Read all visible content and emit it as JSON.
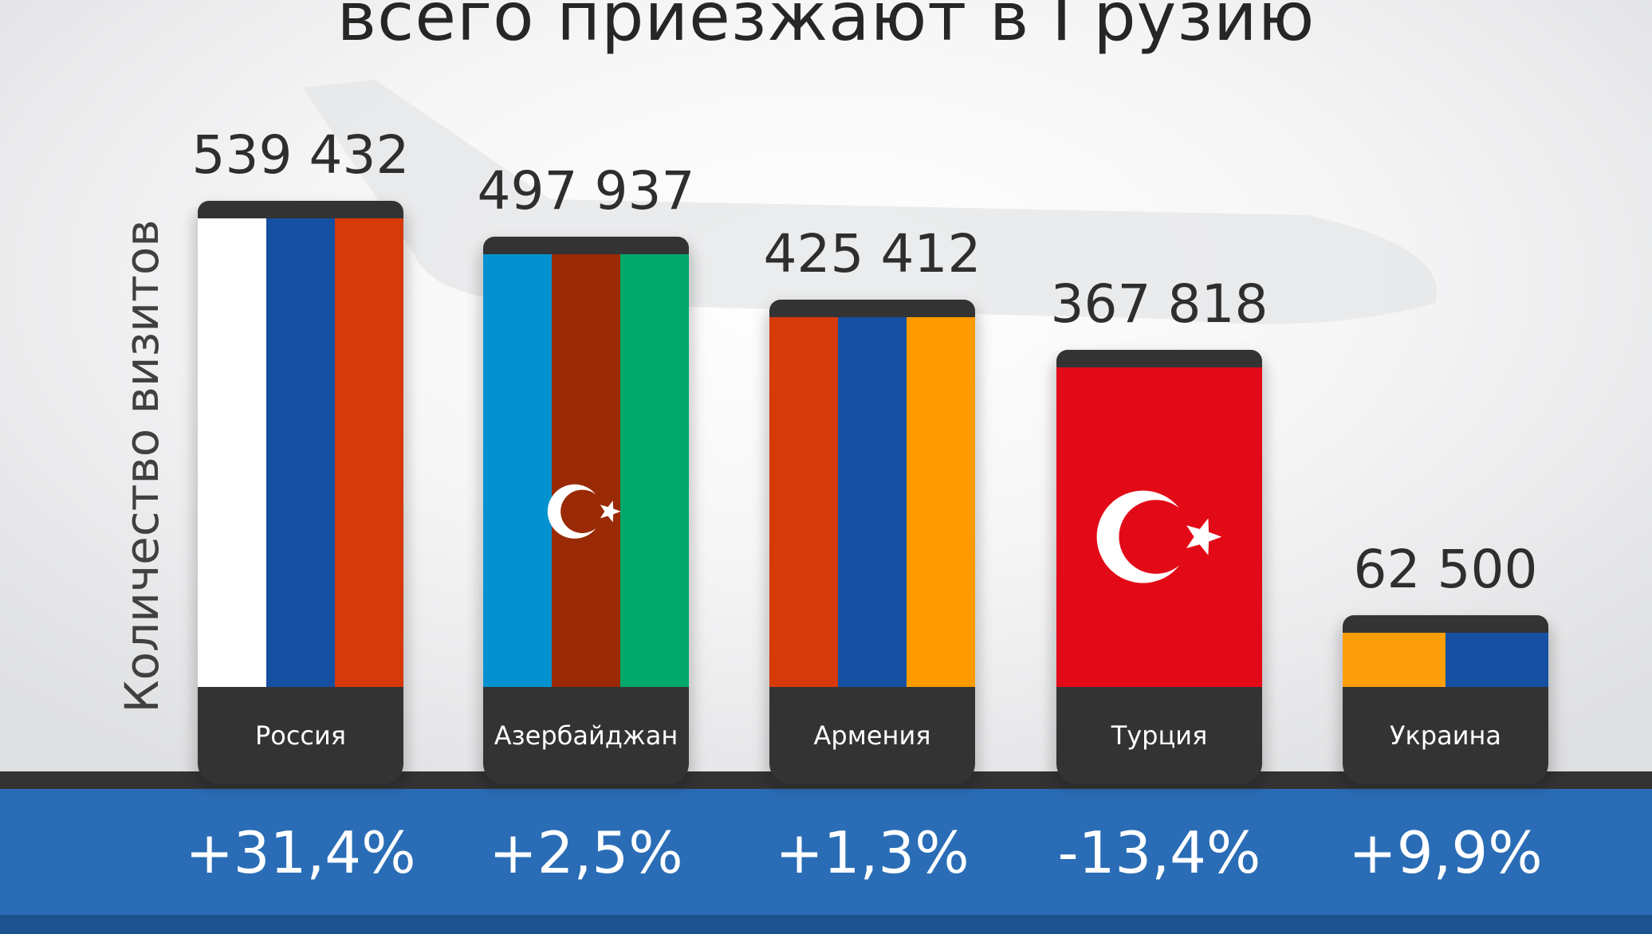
{
  "title": "всего приезжают в Грузию",
  "chart_data": {
    "type": "bar",
    "ylabel": "Количество визитов",
    "categories": [
      "Россия",
      "Азербайджан",
      "Армения",
      "Турция",
      "Украина"
    ],
    "values": [
      539432,
      497937,
      425412,
      367818,
      62500
    ],
    "value_labels": [
      "539 432",
      "497 937",
      "425 412",
      "367 818",
      "62 500"
    ],
    "changes": [
      "+31,4%",
      "+2,5%",
      "+1,3%",
      "-13,4%",
      "+9,9%"
    ],
    "bar_fill": "flag of each country",
    "flags": [
      {
        "colors": [
          "#ffffff",
          "#1550a2",
          "#d6390a"
        ],
        "symbol": "none"
      },
      {
        "colors": [
          "#0392cf",
          "#992a05",
          "#00a86b"
        ],
        "symbol": "crescent-star"
      },
      {
        "colors": [
          "#d6390a",
          "#1550a2",
          "#ff9a00"
        ],
        "symbol": "none"
      },
      {
        "colors": [
          "#e30a17"
        ],
        "symbol": "crescent-star"
      },
      {
        "colors": [
          "#ff9e0b",
          "#1550a2"
        ],
        "symbol": "none"
      }
    ],
    "colors": {
      "cap": "#333333",
      "label_box": "#333333",
      "band": "#2a6db6"
    }
  }
}
